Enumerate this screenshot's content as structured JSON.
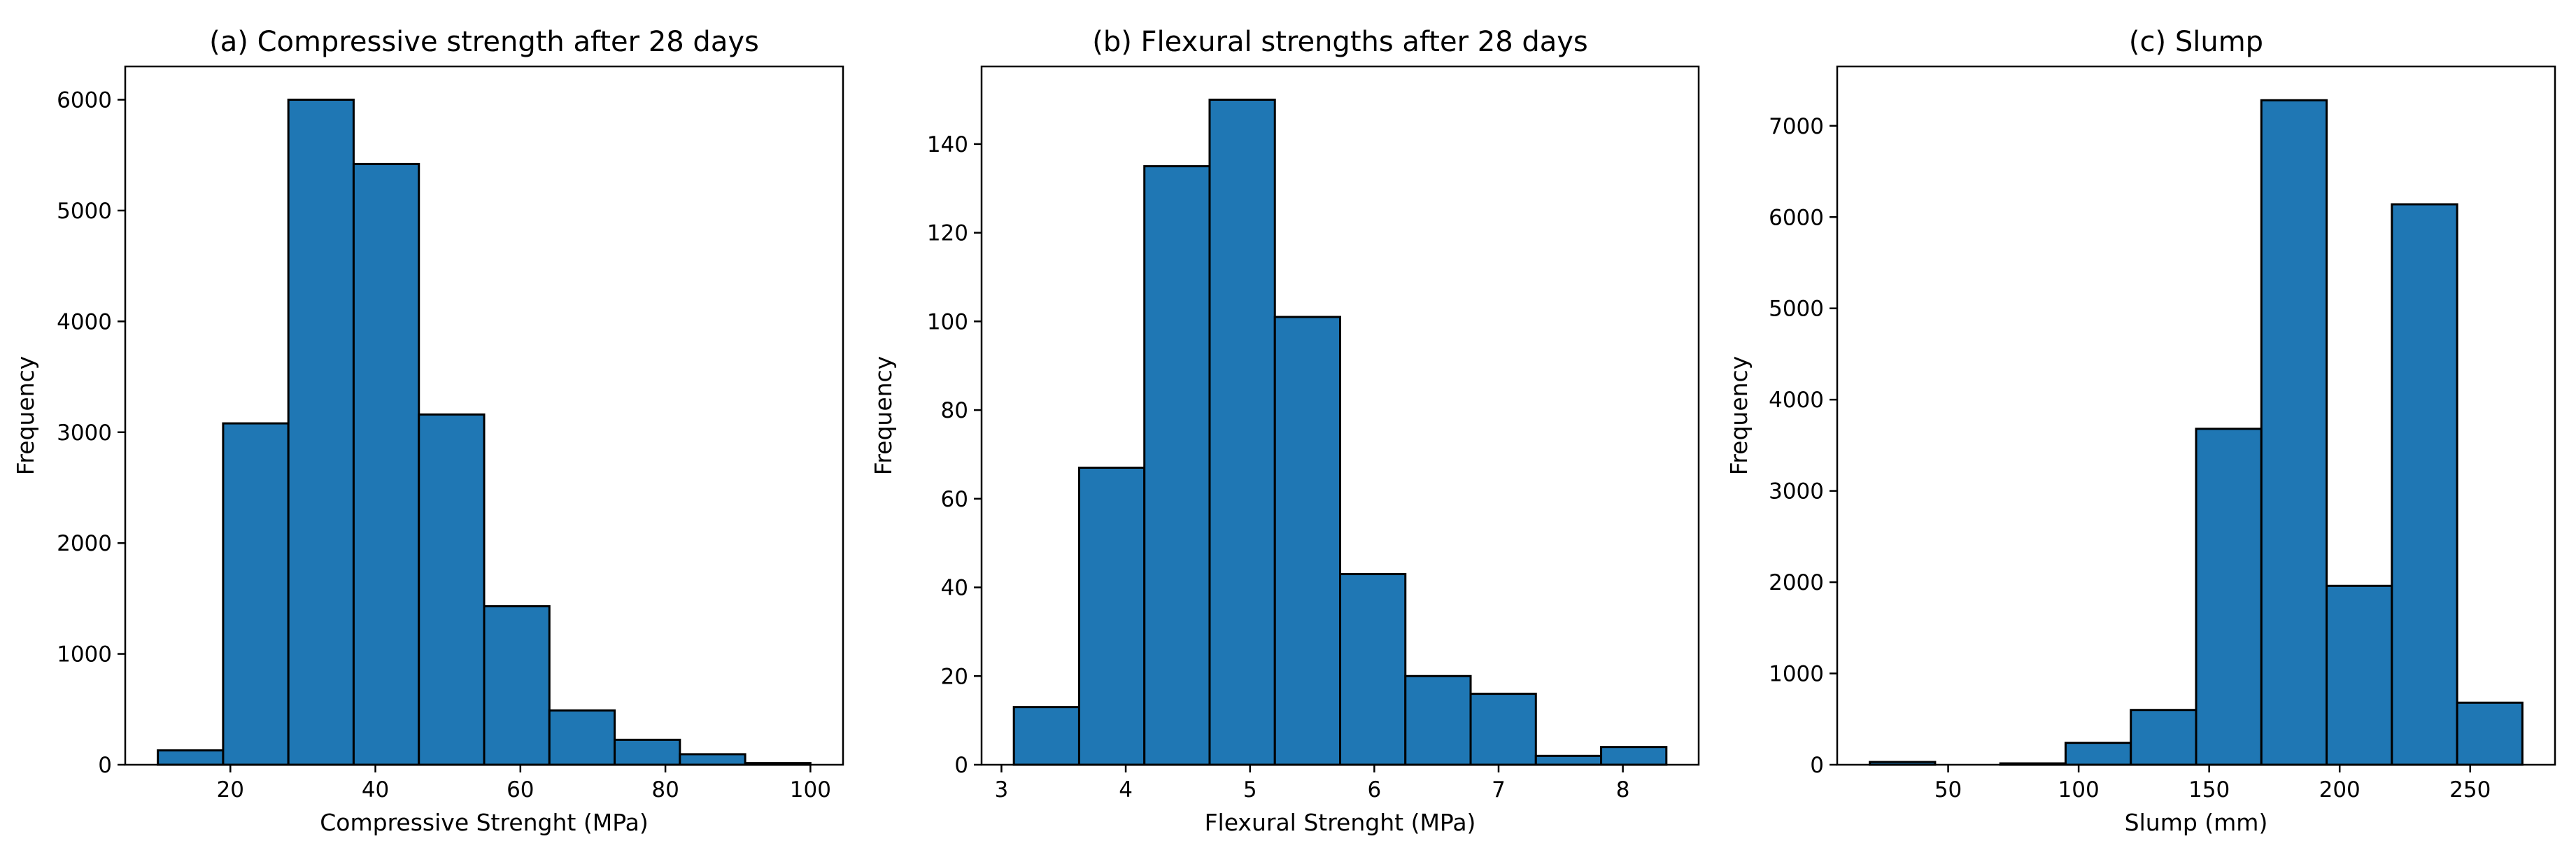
{
  "chart_data": [
    {
      "type": "bar",
      "title": "(a) Compressive strength after 28 days",
      "xlabel": "Compressive Strenght (MPa)",
      "ylabel": "Frequency",
      "bin_edges": [
        10,
        19,
        28,
        37,
        46,
        55,
        64,
        73,
        82,
        91,
        100
      ],
      "values": [
        130,
        3080,
        6000,
        5420,
        3160,
        1430,
        490,
        225,
        95,
        15
      ],
      "xlim": [
        5.5,
        104.5
      ],
      "ylim": [
        0,
        6300
      ],
      "xticks": [
        20,
        40,
        60,
        80,
        100
      ],
      "yticks": [
        0,
        1000,
        2000,
        3000,
        4000,
        5000,
        6000
      ],
      "xtick_labels": [
        "20",
        "40",
        "60",
        "80",
        "100"
      ],
      "ytick_labels": [
        "0",
        "1000",
        "2000",
        "3000",
        "4000",
        "5000",
        "6000"
      ],
      "grid": false,
      "color": "#1f77b4"
    },
    {
      "type": "bar",
      "title": "(b) Flexural strengths after 28 days",
      "xlabel": "Flexural Strenght (MPa)",
      "ylabel": "Frequency",
      "bin_edges": [
        3.1,
        3.625,
        4.15,
        4.675,
        5.2,
        5.725,
        6.25,
        6.775,
        7.3,
        7.825,
        8.35
      ],
      "values": [
        13,
        67,
        135,
        150,
        101,
        43,
        20,
        16,
        2,
        4
      ],
      "xlim": [
        2.84,
        8.61
      ],
      "ylim": [
        0,
        157.5
      ],
      "xticks": [
        3,
        4,
        5,
        6,
        7,
        8
      ],
      "yticks": [
        0,
        20,
        40,
        60,
        80,
        100,
        120,
        140
      ],
      "xtick_labels": [
        "3",
        "4",
        "5",
        "6",
        "7",
        "8"
      ],
      "ytick_labels": [
        "0",
        "20",
        "40",
        "60",
        "80",
        "100",
        "120",
        "140"
      ],
      "grid": false,
      "color": "#1f77b4"
    },
    {
      "type": "bar",
      "title": "(c) Slump",
      "xlabel": "Slump (mm)",
      "ylabel": "Frequency",
      "bin_edges": [
        20,
        45,
        70,
        95,
        120,
        145,
        170,
        195,
        220,
        245,
        270
      ],
      "values": [
        30,
        0,
        15,
        240,
        600,
        3680,
        7280,
        1960,
        6140,
        680
      ],
      "xlim": [
        7.5,
        282.5
      ],
      "ylim": [
        0,
        7650
      ],
      "xticks": [
        50,
        100,
        150,
        200,
        250
      ],
      "yticks": [
        0,
        1000,
        2000,
        3000,
        4000,
        5000,
        6000,
        7000
      ],
      "xtick_labels": [
        "50",
        "100",
        "150",
        "200",
        "250"
      ],
      "ytick_labels": [
        "0",
        "1000",
        "2000",
        "3000",
        "4000",
        "5000",
        "6000",
        "7000"
      ],
      "grid": false,
      "color": "#1f77b4"
    }
  ]
}
